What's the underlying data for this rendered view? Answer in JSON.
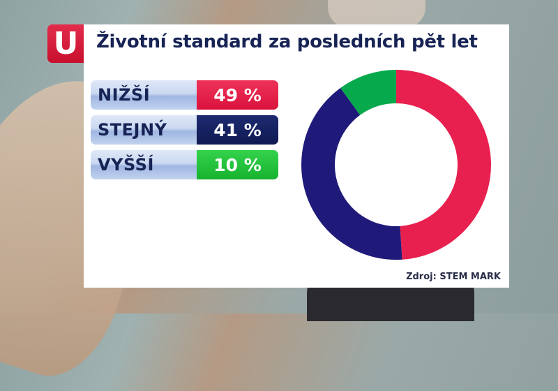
{
  "logo": {
    "letter": "U"
  },
  "title": "Životní standard za posledních pět let",
  "rows": [
    {
      "label": "NIŽŠÍ",
      "value": "49 %",
      "color": "#e31c48"
    },
    {
      "label": "STEJNÝ",
      "value": "41 %",
      "color": "#14205e"
    },
    {
      "label": "VYŠŠÍ",
      "value": "10 %",
      "color": "#1fbf3a"
    }
  ],
  "source": "Zdroj: STEM MARK",
  "chart_data": {
    "type": "pie",
    "title": "Životní standard za posledních pět let",
    "categories": [
      "NIŽŠÍ",
      "STEJNÝ",
      "VYŠŠÍ"
    ],
    "values": [
      49,
      41,
      10
    ],
    "colors": [
      "#e8204f",
      "#1f1a7a",
      "#06a94c"
    ],
    "donut": true,
    "source": "Zdroj: STEM MARK"
  }
}
